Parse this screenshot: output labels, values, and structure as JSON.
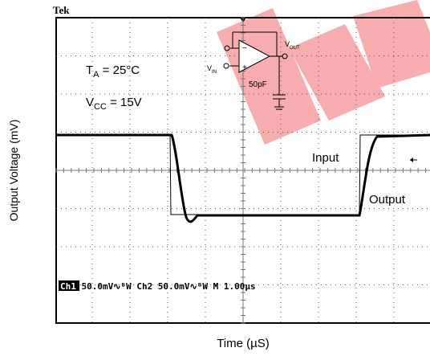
{
  "figure": {
    "brand": "Tek",
    "y_label": "Output Voltage (mV)",
    "x_label": "Time (µS)",
    "temp": {
      "main": "T",
      "sub": "A",
      "rest": " = 25°C"
    },
    "supply": {
      "main": "V",
      "sub": "CC",
      "rest": " = 15V"
    },
    "input_label": "Input",
    "output_label": "Output",
    "scope_status": {
      "channel": "Ch1",
      "text": " 50.0mV∿ᴮW Ch2  50.0mV∿ᴮW M 1.00µs"
    },
    "circuit": {
      "vout_main": "V",
      "vout_sub": "OUT",
      "vin_main": "V",
      "vin_sub": "IN",
      "cap": "50pF",
      "minus": "−",
      "plus": "+"
    }
  }
}
